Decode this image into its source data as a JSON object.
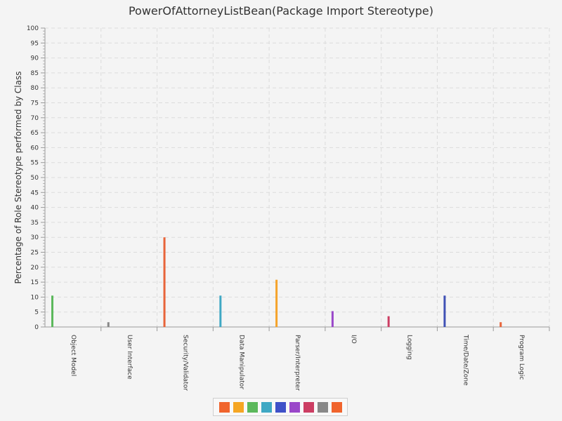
{
  "chart_data": {
    "type": "bar",
    "title": "PowerOfAttorneyListBean(Package Import Stereotype)",
    "xlabel": "",
    "ylabel": "Percentage of Role Stereotype performed by Class",
    "ylim": [
      0,
      100
    ],
    "ytick_step": 5,
    "grid": true,
    "legend_position": "bottom",
    "categories": [
      "Object Model",
      "User Interface",
      "Security/Validator",
      "Data Manipulator",
      "Parser/Interpreter",
      "I/O",
      "Logging",
      "Time/Date/Zone",
      "Program Logic"
    ],
    "values": [
      10.5,
      1.6,
      30,
      10.5,
      15.8,
      5.3,
      3.6,
      10.5,
      1.6
    ],
    "bar_colors": [
      "#5cb85c",
      "#888888",
      "#e8643a",
      "#3fa8c4",
      "#f5a32a",
      "#9a47c9",
      "#cc3e63",
      "#3f51b5",
      "#e8643a"
    ],
    "legend_colors": [
      "#f0642d",
      "#f5a623",
      "#5cb85c",
      "#3fa8c4",
      "#3f51c8",
      "#9a47c9",
      "#cc3e63",
      "#888888",
      "#f0642d"
    ]
  }
}
